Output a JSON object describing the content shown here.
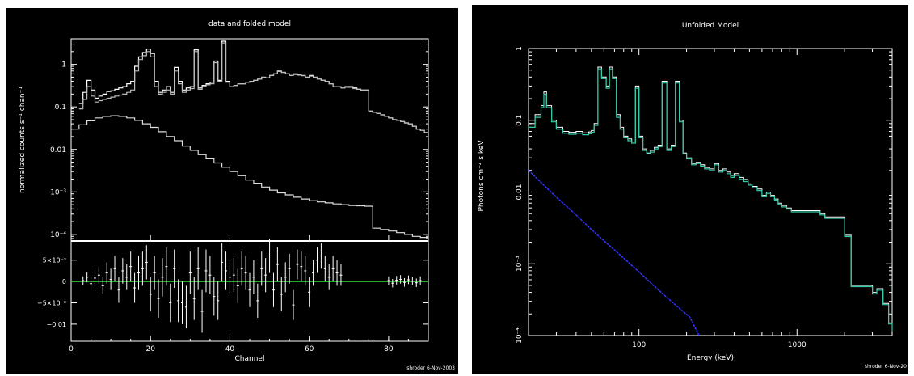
{
  "chart_data": [
    {
      "type": "line",
      "title": "data and folded model",
      "xlabel": "Channel",
      "ylabel_top": "normalized counts s⁻¹ chan⁻¹",
      "xlim": [
        0,
        90
      ],
      "ylim_top": [
        7e-05,
        4
      ],
      "yscale_top": "log",
      "ylim_bottom": [
        -0.014,
        0.0095
      ],
      "x_ticks": [
        "0",
        "20",
        "40",
        "60",
        "80"
      ],
      "y_ticks_top": [
        "1",
        "0.1",
        "0.01",
        "10⁻³",
        "10⁻⁴"
      ],
      "y_ticks_bottom": [
        "5×10⁻³",
        "0",
        "−5×10⁻³",
        "−0.01"
      ],
      "footer": "shroder  6-Nov-2003",
      "grid": false,
      "colors": {
        "data": "#ffffff",
        "zero_line": "#22cc22",
        "axes": "#ffffff"
      },
      "series": [
        {
          "x": [
            2,
            3,
            4,
            5,
            6,
            7,
            8,
            9,
            10,
            11,
            12,
            13,
            14,
            15,
            16,
            17,
            18,
            19,
            20,
            21,
            22,
            23,
            24,
            25,
            26,
            27,
            28,
            29,
            30,
            31,
            32,
            33,
            34,
            35,
            36,
            37,
            38,
            39,
            40,
            41,
            42,
            43,
            44,
            45,
            46,
            47,
            48,
            49,
            50,
            51,
            52,
            53,
            54,
            55,
            56,
            57,
            58,
            59,
            60,
            61,
            62,
            63,
            64,
            65,
            66,
            67,
            68,
            69,
            70,
            71,
            72,
            73,
            74,
            75,
            76,
            77,
            78,
            79,
            80,
            81,
            82,
            83,
            84,
            85,
            86,
            87,
            88,
            89,
            90
          ],
          "values": [
            0.12,
            0.22,
            0.42,
            0.25,
            0.16,
            0.18,
            0.2,
            0.23,
            0.24,
            0.26,
            0.28,
            0.3,
            0.35,
            0.4,
            0.9,
            1.5,
            1.9,
            2.3,
            1.8,
            0.4,
            0.22,
            0.25,
            0.3,
            0.22,
            0.85,
            0.4,
            0.25,
            0.28,
            0.3,
            2.2,
            0.28,
            0.32,
            0.35,
            0.38,
            1.2,
            0.42,
            3.5,
            0.4,
            0.3,
            0.32,
            0.35,
            0.35,
            0.38,
            0.4,
            0.42,
            0.45,
            0.5,
            0.48,
            0.55,
            0.6,
            0.7,
            0.65,
            0.6,
            0.55,
            0.6,
            0.58,
            0.55,
            0.5,
            0.55,
            0.5,
            0.45,
            0.42,
            0.4,
            0.35,
            0.3,
            0.3,
            0.28,
            0.3,
            0.3,
            0.28,
            0.26,
            0.25,
            0.25,
            0.08,
            0.075,
            0.07,
            0.065,
            0.06,
            0.055,
            0.05,
            0.048,
            0.045,
            0.042,
            0.04,
            0.035,
            0.03,
            0.028,
            0.025,
            0.022
          ]
        },
        {
          "x": [
            2,
            3,
            4,
            5,
            6,
            7,
            8,
            9,
            10,
            11,
            12,
            13,
            14,
            15,
            16,
            17,
            18,
            19,
            20,
            21,
            22,
            23,
            24,
            25,
            26,
            27,
            28,
            29,
            30,
            31,
            32,
            33,
            34,
            35,
            36,
            37,
            38,
            39,
            40,
            41,
            42,
            43,
            44,
            45,
            46,
            47,
            48,
            49,
            50,
            51,
            52,
            53,
            54,
            55,
            56,
            57,
            58,
            59,
            60,
            61,
            62,
            63,
            64,
            65,
            66,
            67,
            68,
            69,
            70,
            71,
            72,
            73,
            74,
            75,
            76,
            77,
            78,
            79,
            80,
            81,
            82,
            83,
            84,
            85,
            86,
            87,
            88,
            89,
            90
          ],
          "values": [
            0.09,
            0.15,
            0.3,
            0.18,
            0.13,
            0.14,
            0.15,
            0.16,
            0.17,
            0.18,
            0.19,
            0.2,
            0.22,
            0.25,
            0.7,
            1.3,
            1.6,
            2.0,
            1.5,
            0.3,
            0.2,
            0.22,
            0.25,
            0.2,
            0.7,
            0.35,
            0.22,
            0.25,
            0.27,
            2.0,
            0.26,
            0.3,
            0.33,
            0.35,
            1.1,
            0.4,
            3.2,
            0.38,
            0.3,
            0.32,
            0.35,
            0.35,
            0.38,
            0.4,
            0.42,
            0.45,
            0.5,
            0.48,
            0.55,
            0.6,
            0.68,
            0.65,
            0.6,
            0.55,
            0.58,
            0.56,
            0.54,
            0.5,
            0.53,
            0.5,
            0.45,
            0.42,
            0.4,
            0.35,
            0.3,
            0.3,
            0.28,
            0.29,
            0.29,
            0.27,
            0.26,
            0.25,
            0.25,
            0.08,
            0.075,
            0.07,
            0.065,
            0.06,
            0.055,
            0.05,
            0.048,
            0.045,
            0.042,
            0.04,
            0.035,
            0.03,
            0.028,
            0.025,
            0.022
          ]
        },
        {
          "x": [
            0,
            2,
            4,
            6,
            8,
            10,
            12,
            14,
            16,
            18,
            20,
            22,
            24,
            26,
            28,
            30,
            32,
            34,
            36,
            38,
            40,
            42,
            44,
            46,
            48,
            50,
            52,
            54,
            56,
            58,
            60,
            62,
            64,
            66,
            68,
            70,
            72,
            74,
            76,
            78,
            80,
            82,
            84,
            86,
            88,
            90
          ],
          "values": [
            0.03,
            0.038,
            0.047,
            0.055,
            0.06,
            0.062,
            0.06,
            0.055,
            0.048,
            0.04,
            0.033,
            0.026,
            0.02,
            0.016,
            0.012,
            0.0095,
            0.0075,
            0.006,
            0.0048,
            0.0038,
            0.003,
            0.0024,
            0.0019,
            0.0016,
            0.0013,
            0.0011,
            0.00095,
            0.00085,
            0.00075,
            0.00068,
            0.00062,
            0.00058,
            0.00055,
            0.00052,
            0.0005,
            0.00048,
            0.00047,
            0.00046,
            0.00014,
            0.00013,
            0.00012,
            0.00011,
            0.0001,
            9e-05,
            8.5e-05,
            8e-05
          ]
        }
      ],
      "residuals": {
        "x": [
          3,
          4,
          5,
          6,
          7,
          8,
          9,
          10,
          11,
          12,
          13,
          14,
          15,
          16,
          17,
          18,
          19,
          20,
          21,
          22,
          23,
          24,
          25,
          26,
          27,
          28,
          29,
          30,
          31,
          32,
          33,
          34,
          35,
          36,
          37,
          38,
          39,
          40,
          41,
          42,
          43,
          44,
          45,
          46,
          47,
          48,
          49,
          50,
          51,
          52,
          53,
          54,
          55,
          56,
          57,
          58,
          59,
          60,
          61,
          62,
          63,
          64,
          65,
          66,
          67,
          68,
          80,
          81,
          82,
          83,
          84,
          85,
          86,
          87,
          88
        ],
        "values": [
          0.0002,
          0.001,
          -0.0005,
          0.0008,
          0.0015,
          -0.001,
          0.002,
          0.0005,
          0.003,
          -0.002,
          0.0025,
          0.001,
          0.0035,
          -0.0015,
          0.002,
          0.003,
          0.0045,
          -0.003,
          0.002,
          -0.004,
          0.001,
          0.0035,
          -0.005,
          0.003,
          -0.0045,
          -0.005,
          -0.006,
          0.002,
          -0.004,
          0.003,
          -0.007,
          0.0025,
          0.0015,
          -0.0035,
          -0.0045,
          0.0045,
          0.0025,
          0.001,
          0.0015,
          -0.001,
          0.003,
          0.002,
          -0.002,
          0.001,
          -0.0045,
          0.003,
          0.0015,
          0.006,
          -0.002,
          0.004,
          -0.003,
          0.001,
          0.003,
          -0.0055,
          0.004,
          0.0035,
          0.0025,
          -0.0025,
          0.002,
          0.005,
          0.006,
          0.003,
          0.001,
          0.003,
          0.002,
          0.0015,
          0.0002,
          -0.0004,
          0.0003,
          0.0005,
          -0.0002,
          0.0004,
          0.0001,
          -0.0003,
          0.0002
        ],
        "errors": [
          0.001,
          0.0012,
          0.0015,
          0.002,
          0.002,
          0.002,
          0.0025,
          0.0025,
          0.003,
          0.003,
          0.003,
          0.003,
          0.0035,
          0.0035,
          0.004,
          0.004,
          0.004,
          0.004,
          0.004,
          0.0045,
          0.0045,
          0.0045,
          0.0045,
          0.0045,
          0.005,
          0.005,
          0.005,
          0.005,
          0.005,
          0.005,
          0.005,
          0.005,
          0.0045,
          0.0045,
          0.0045,
          0.0045,
          0.0045,
          0.004,
          0.004,
          0.004,
          0.004,
          0.004,
          0.004,
          0.004,
          0.004,
          0.004,
          0.004,
          0.004,
          0.004,
          0.004,
          0.004,
          0.0035,
          0.0035,
          0.0035,
          0.0035,
          0.0035,
          0.0035,
          0.0035,
          0.003,
          0.003,
          0.003,
          0.003,
          0.003,
          0.003,
          0.003,
          0.0025,
          0.001,
          0.001,
          0.001,
          0.001,
          0.001,
          0.001,
          0.001,
          0.001,
          0.001
        ]
      }
    },
    {
      "type": "line",
      "title": "Unfolded Model",
      "xlabel": "Energy (keV)",
      "ylabel": "Photons cm⁻² s keV",
      "xlim": [
        20,
        4000
      ],
      "xscale": "log",
      "ylim": [
        0.0001,
        1
      ],
      "yscale": "log",
      "x_ticks": [
        "100",
        "1000"
      ],
      "y_ticks": [
        "1",
        "0.1",
        "0.01",
        "10⁻³",
        "10⁻⁴"
      ],
      "footer": "shroder  6-Nov-20",
      "grid": false,
      "colors": {
        "total": "#ffffff",
        "model": "#33ccaa",
        "green": "#22cc22",
        "blue": "#3333ff",
        "axes": "#ffffff"
      },
      "series": [
        {
          "x": [
            20,
            22,
            24,
            25,
            26,
            28,
            30,
            33,
            36,
            40,
            44,
            48,
            50,
            52,
            55,
            58,
            62,
            65,
            68,
            72,
            76,
            80,
            85,
            90,
            95,
            100,
            106,
            112,
            118,
            125,
            132,
            140,
            150,
            160,
            170,
            180,
            190,
            200,
            215,
            230,
            245,
            260,
            280,
            300,
            320,
            340,
            360,
            380,
            400,
            430,
            460,
            490,
            520,
            560,
            600,
            640,
            680,
            720,
            760,
            800,
            860,
            920,
            1000,
            1100,
            1200,
            1300,
            1400,
            1500,
            1600,
            1800,
            2000,
            2200,
            2500,
            2800,
            3000,
            3200,
            3500,
            3800,
            4000
          ],
          "values": [
            0.09,
            0.12,
            0.16,
            0.25,
            0.16,
            0.1,
            0.08,
            0.07,
            0.068,
            0.07,
            0.067,
            0.069,
            0.072,
            0.09,
            0.55,
            0.4,
            0.3,
            0.55,
            0.4,
            0.12,
            0.08,
            0.06,
            0.055,
            0.05,
            0.3,
            0.06,
            0.04,
            0.035,
            0.038,
            0.042,
            0.045,
            0.35,
            0.04,
            0.045,
            0.35,
            0.1,
            0.035,
            0.03,
            0.025,
            0.026,
            0.024,
            0.022,
            0.021,
            0.025,
            0.02,
            0.021,
            0.019,
            0.017,
            0.018,
            0.016,
            0.015,
            0.013,
            0.012,
            0.011,
            0.009,
            0.01,
            0.009,
            0.008,
            0.007,
            0.0065,
            0.006,
            0.0055,
            0.0055,
            0.0055,
            0.0055,
            0.0055,
            0.005,
            0.0045,
            0.0045,
            0.0045,
            0.0025,
            0.0005,
            0.0005,
            0.0005,
            0.0004,
            0.00045,
            0.00028,
            0.00015,
            0.00012
          ]
        },
        {
          "x": [
            20,
            22,
            24,
            25,
            26,
            28,
            30,
            33,
            36,
            40,
            44,
            48,
            50,
            52,
            55,
            58,
            62,
            65,
            68,
            72,
            76,
            80,
            85,
            90,
            95,
            100,
            106,
            112,
            118,
            125,
            132,
            140,
            150,
            160,
            170,
            180,
            190,
            200,
            215,
            230,
            245,
            260,
            280,
            300,
            320,
            340,
            360,
            380,
            400,
            430,
            460,
            490,
            520,
            560,
            600,
            640,
            680,
            720,
            760,
            800,
            860,
            920,
            1000,
            1100,
            1200,
            1300,
            1400,
            1500,
            1600,
            1800,
            2000,
            2200,
            2500,
            2800,
            3000,
            3200,
            3500,
            3800,
            4000
          ],
          "values": [
            0.08,
            0.11,
            0.15,
            0.23,
            0.15,
            0.095,
            0.075,
            0.066,
            0.064,
            0.066,
            0.063,
            0.065,
            0.068,
            0.085,
            0.52,
            0.38,
            0.28,
            0.52,
            0.38,
            0.11,
            0.075,
            0.057,
            0.052,
            0.048,
            0.28,
            0.057,
            0.038,
            0.034,
            0.036,
            0.04,
            0.043,
            0.33,
            0.038,
            0.043,
            0.33,
            0.095,
            0.034,
            0.029,
            0.024,
            0.025,
            0.023,
            0.021,
            0.02,
            0.024,
            0.019,
            0.02,
            0.018,
            0.016,
            0.017,
            0.015,
            0.014,
            0.0125,
            0.0115,
            0.0105,
            0.0086,
            0.0096,
            0.0086,
            0.0077,
            0.0067,
            0.0062,
            0.0058,
            0.0053,
            0.0053,
            0.0053,
            0.0053,
            0.0053,
            0.0048,
            0.0043,
            0.0043,
            0.0043,
            0.0024,
            0.00048,
            0.00048,
            0.00048,
            0.00038,
            0.00043,
            0.00027,
            0.000145,
            0.000115
          ]
        },
        {
          "x": [
            20,
            30,
            40,
            50,
            60,
            80,
            100,
            120,
            150,
            180,
            210,
            240
          ],
          "values": [
            0.02,
            0.0085,
            0.0048,
            0.003,
            0.0021,
            0.0012,
            0.00077,
            0.00053,
            0.00034,
            0.00024,
            0.00018,
            0.0001
          ]
        }
      ]
    }
  ]
}
